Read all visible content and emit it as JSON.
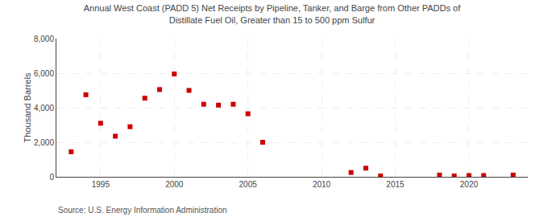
{
  "chart_data": {
    "type": "scatter",
    "title": "Annual West Coast (PADD 5) Net Receipts by Pipeline, Tanker, and Barge from Other PADDs of\nDistillate Fuel Oil, Greater than 15 to 500 ppm Sulfur",
    "ylabel": "Thousand Barrels",
    "annotations": [
      "Source: U.S. Energy Information Administration"
    ],
    "x": [
      1993,
      1994,
      1995,
      1996,
      1997,
      1998,
      1999,
      2000,
      2001,
      2002,
      2003,
      2004,
      2005,
      2006,
      2012,
      2013,
      2014,
      2018,
      2019,
      2020,
      2021,
      2023
    ],
    "values": [
      1450,
      4750,
      3100,
      2350,
      2900,
      4550,
      5050,
      5950,
      5000,
      4200,
      4150,
      4200,
      3650,
      2000,
      250,
      500,
      50,
      100,
      50,
      75,
      75,
      100
    ],
    "color": "#cc0000",
    "marker": "square",
    "xlim": [
      1992,
      2024
    ],
    "ylim": [
      0,
      8000
    ],
    "xticks": [
      1995,
      2000,
      2005,
      2010,
      2015,
      2020
    ],
    "yticks": [
      0,
      {
        "value": 2000,
        "label": "2,000"
      },
      {
        "value": 4000,
        "label": "4,000"
      },
      {
        "value": 6000,
        "label": "6,000"
      },
      {
        "value": 8000,
        "label": "8,000"
      }
    ],
    "grid": true
  }
}
